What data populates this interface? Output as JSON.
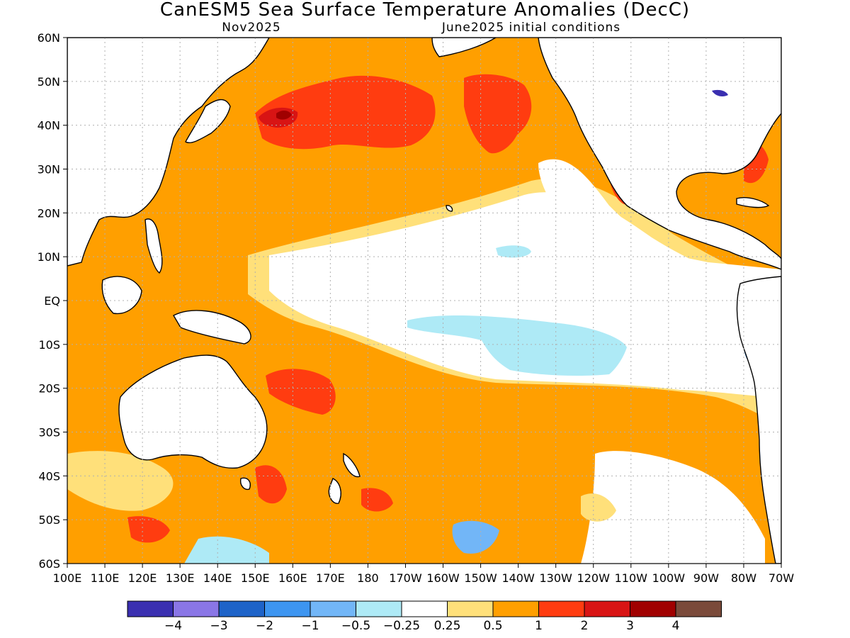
{
  "map": {
    "title": "CanESM5 Sea Surface Temperature Anomalies (DecC)",
    "forecast_month": "Nov2025",
    "init_note": "June2025 initial conditions",
    "lat_labels": [
      "60N",
      "50N",
      "40N",
      "30N",
      "20N",
      "10N",
      "EQ",
      "10S",
      "20S",
      "30S",
      "40S",
      "50S",
      "60S"
    ],
    "lon_labels": [
      "100E",
      "110E",
      "120E",
      "130E",
      "140E",
      "150E",
      "160E",
      "170E",
      "180",
      "170W",
      "160W",
      "150W",
      "140W",
      "130W",
      "120W",
      "110W",
      "100W",
      "90W",
      "80W",
      "70W"
    ],
    "extent": {
      "lon_min": 100,
      "lon_max": 290,
      "lat_min": -60,
      "lat_max": 60
    },
    "colors": {
      "land": "#ffffff",
      "coast": "#000000",
      "grid": "#b0b0b0"
    }
  },
  "colorbar": {
    "colors": [
      "#3a2fb0",
      "#8a76e6",
      "#1e63c8",
      "#3d95f0",
      "#72b6f7",
      "#aeeaf6",
      "#ffffff",
      "#ffe07a",
      "#ff9f00",
      "#ff3c10",
      "#d81414",
      "#a00000",
      "#7a4a3a"
    ],
    "labels": [
      "-4",
      "-3",
      "-2",
      "-1",
      "-0.5",
      "-0.25",
      "0.25",
      "0.5",
      "1",
      "2",
      "3",
      "4"
    ]
  }
}
